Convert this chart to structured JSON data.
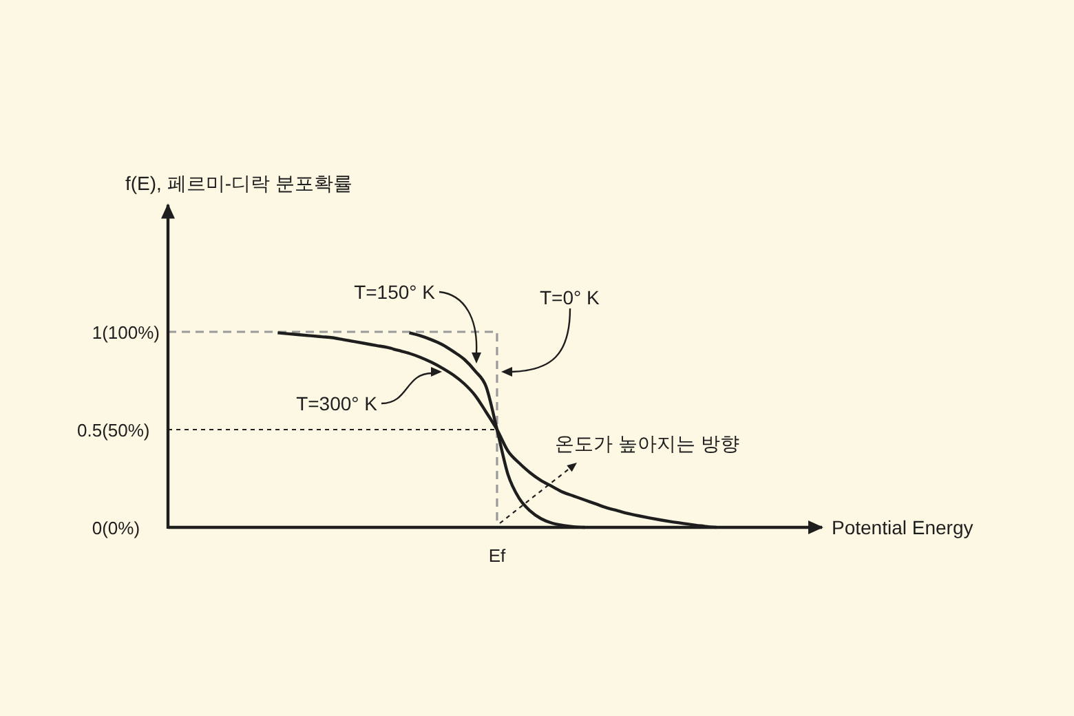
{
  "chart_data": {
    "type": "line",
    "ylabel": "f(E), 페르미-디락 분포확률",
    "xlabel": "Potential Energy",
    "categories": [
      null,
      null,
      null,
      null,
      null,
      null,
      null,
      null,
      null,
      null,
      null,
      null,
      null,
      null,
      null,
      null,
      null,
      null,
      null,
      null,
      null,
      null,
      null,
      null,
      null,
      null,
      null,
      null,
      null,
      null,
      "Ef",
      null,
      null,
      null,
      null,
      null,
      null,
      null,
      null,
      null,
      null,
      null,
      null,
      null,
      null,
      null,
      null,
      null,
      null,
      null,
      null,
      null,
      null,
      null,
      null,
      null,
      null,
      null,
      null,
      null
    ],
    "ylim": [
      0,
      1.65
    ],
    "yticks": [
      0,
      0.5,
      1
    ],
    "annotations": [
      "(0%)",
      "(50%)",
      "(100%)",
      "온도가 높아지는 방향"
    ],
    "series": [
      {
        "name": "T=0° K",
        "type": "step",
        "color": "#9a9a9a",
        "line_style": "dashed",
        "values": [
          1,
          1,
          1,
          1,
          1,
          1,
          1,
          1,
          1,
          1,
          1,
          1,
          1,
          1,
          1,
          1,
          1,
          1,
          1,
          1,
          1,
          1,
          1,
          1,
          1,
          1,
          1,
          1,
          1,
          1,
          0,
          null,
          null,
          null,
          null,
          null,
          null,
          null,
          null,
          null,
          null,
          null,
          null,
          null,
          null,
          null,
          null,
          null,
          null,
          null,
          null,
          null,
          null,
          null,
          null,
          null,
          null,
          null,
          null,
          null
        ]
      },
      {
        "color": "#1e1e1e",
        "line_style": "dotted",
        "values": [
          0.5,
          0.5,
          0.5,
          0.5,
          0.5,
          0.5,
          0.5,
          0.5,
          0.5,
          0.5,
          0.5,
          0.5,
          0.5,
          0.5,
          0.5,
          0.5,
          0.5,
          0.5,
          0.5,
          0.5,
          0.5,
          0.5,
          0.5,
          0.5,
          0.5,
          0.5,
          0.5,
          0.5,
          0.5,
          0.5,
          0.5,
          null,
          null,
          null,
          null,
          null,
          null,
          null,
          null,
          null,
          null,
          null,
          null,
          null,
          null,
          null,
          null,
          null,
          null,
          null,
          null,
          null,
          null,
          null,
          null,
          null,
          null,
          null,
          null,
          null
        ]
      },
      {
        "name": "T=150° K",
        "color": "#1e1e1e",
        "line_style": "solid",
        "values": [
          null,
          null,
          null,
          null,
          null,
          null,
          null,
          null,
          null,
          null,
          null,
          null,
          null,
          null,
          null,
          null,
          null,
          null,
          null,
          null,
          null,
          null,
          0.995,
          0.98,
          0.96,
          0.935,
          0.9,
          0.86,
          0.8,
          0.72,
          0.5,
          0.27,
          0.15,
          0.085,
          0.045,
          0.022,
          0.01,
          0.003,
          0,
          null,
          null,
          null,
          null,
          null,
          null,
          null,
          null,
          null,
          null,
          null,
          null,
          null,
          null,
          null,
          null,
          null,
          null,
          null,
          null,
          null
        ]
      },
      {
        "name": "T=300° K",
        "color": "#1e1e1e",
        "line_style": "solid",
        "values": [
          null,
          null,
          null,
          null,
          null,
          null,
          null,
          null,
          null,
          null,
          0.995,
          0.99,
          0.985,
          0.98,
          0.975,
          0.97,
          0.96,
          0.95,
          0.94,
          0.93,
          0.92,
          0.905,
          0.89,
          0.87,
          0.845,
          0.815,
          0.78,
          0.735,
          0.675,
          0.59,
          0.5,
          0.39,
          0.33,
          0.28,
          0.24,
          0.21,
          0.18,
          0.16,
          0.14,
          0.12,
          0.1,
          0.085,
          0.07,
          0.058,
          0.047,
          0.037,
          0.028,
          0.02,
          0.012,
          0.005,
          0,
          null,
          null,
          null,
          null,
          null,
          null,
          null,
          null,
          null
        ]
      }
    ]
  }
}
